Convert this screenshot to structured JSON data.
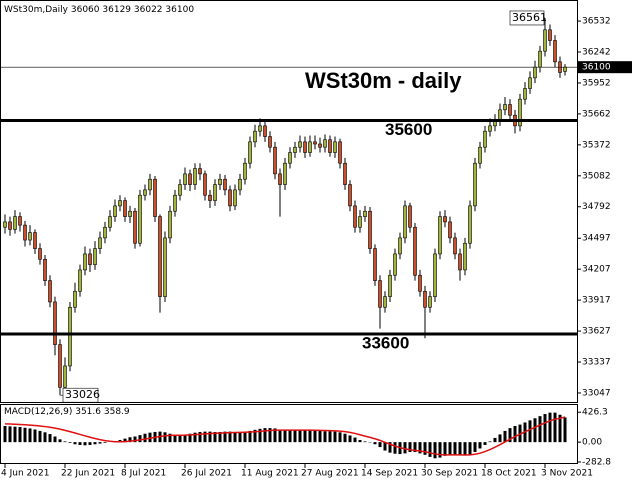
{
  "chart_data": {
    "type": "candlestick",
    "symbol": "WSt30m,Daily",
    "title": "WSt30m - daily",
    "categories": [
      "4 Jun 2021",
      null,
      null,
      null,
      null,
      null,
      null,
      null,
      null,
      null,
      null,
      null,
      "22 Jun 2021",
      null,
      null,
      null,
      null,
      null,
      null,
      null,
      null,
      null,
      null,
      null,
      "8 Jul 2021",
      null,
      null,
      null,
      null,
      null,
      null,
      null,
      null,
      null,
      null,
      null,
      "26 Jul 2021",
      null,
      null,
      null,
      null,
      null,
      null,
      null,
      null,
      null,
      null,
      null,
      "11 Aug 2021",
      null,
      null,
      null,
      null,
      null,
      null,
      null,
      null,
      null,
      null,
      null,
      "27 Aug 2021",
      null,
      null,
      null,
      null,
      null,
      null,
      null,
      null,
      null,
      null,
      null,
      "14 Sep 2021",
      null,
      null,
      null,
      null,
      null,
      null,
      null,
      null,
      null,
      null,
      null,
      "30 Sep 2021",
      null,
      null,
      null,
      null,
      null,
      null,
      null,
      null,
      null,
      null,
      null,
      "18 Oct 2021",
      null,
      null,
      null,
      null,
      null,
      null,
      null,
      null,
      null,
      null,
      null,
      "3 Nov 2021",
      null,
      null,
      null,
      null
    ],
    "open": [
      34600,
      34650,
      34580,
      34700,
      34620,
      34480,
      34550,
      34400,
      34300,
      34100,
      33900,
      33500,
      33100,
      33300,
      33850,
      34000,
      34200,
      34350,
      34250,
      34400,
      34500,
      34600,
      34700,
      34800,
      34850,
      34700,
      34750,
      34450,
      34900,
      34950,
      35050,
      34700,
      33950,
      34500,
      34750,
      34900,
      35000,
      35100,
      35000,
      35150,
      35100,
      34900,
      34850,
      35000,
      35050,
      34950,
      34800,
      34950,
      35050,
      35200,
      35400,
      35500,
      35550,
      35450,
      35350,
      35100,
      35000,
      35200,
      35300,
      35350,
      35400,
      35300,
      35400,
      35380,
      35350,
      35420,
      35300,
      35400,
      35200,
      35000,
      34800,
      34600,
      34700,
      34750,
      34400,
      34100,
      33850,
      33950,
      34150,
      34350,
      34500,
      34800,
      34600,
      34150,
      34000,
      33850,
      33950,
      34350,
      34700,
      34650,
      34500,
      34350,
      34200,
      34450,
      34800,
      35200,
      35350,
      35500,
      35550,
      35600,
      35700,
      35750,
      35650,
      35550,
      35800,
      35900,
      36000,
      36100,
      36250,
      36450,
      36350,
      36150,
      36060
    ],
    "high": [
      34720,
      34700,
      34760,
      34740,
      34660,
      34620,
      34580,
      34450,
      34340,
      34150,
      33950,
      33550,
      33380,
      33900,
      34080,
      34250,
      34420,
      34400,
      34470,
      34560,
      34650,
      34760,
      34860,
      34900,
      34880,
      34800,
      34780,
      34950,
      35000,
      35100,
      35080,
      34720,
      34560,
      34800,
      34950,
      35050,
      35160,
      35140,
      35200,
      35200,
      35130,
      34950,
      35050,
      35100,
      35090,
      34990,
      35000,
      35100,
      35250,
      35450,
      35560,
      35620,
      35600,
      35500,
      35400,
      35150,
      35250,
      35350,
      35400,
      35460,
      35450,
      35460,
      35460,
      35440,
      35470,
      35460,
      35450,
      35430,
      35250,
      35040,
      34850,
      34760,
      34800,
      34790,
      34440,
      34150,
      34000,
      34200,
      34400,
      34550,
      34850,
      34830,
      34640,
      34200,
      34050,
      34000,
      34400,
      34750,
      34760,
      34700,
      34550,
      34400,
      34500,
      34850,
      35250,
      35400,
      35550,
      35620,
      35660,
      35760,
      35820,
      35800,
      35700,
      35850,
      35960,
      36060,
      36160,
      36300,
      36561,
      36500,
      36400,
      36200,
      36129
    ],
    "low": [
      34540,
      34520,
      34540,
      34560,
      34420,
      34430,
      34350,
      34250,
      34050,
      33850,
      33400,
      33026,
      33080,
      33250,
      33800,
      33950,
      34150,
      34180,
      34200,
      34350,
      34450,
      34560,
      34650,
      34750,
      34650,
      34640,
      34400,
      34420,
      34850,
      34900,
      34650,
      33800,
      33900,
      34450,
      34700,
      34850,
      34950,
      34940,
      34950,
      35040,
      34850,
      34780,
      34800,
      34950,
      34900,
      34750,
      34760,
      34900,
      35000,
      35150,
      35350,
      35450,
      35400,
      35300,
      35050,
      34700,
      34950,
      35150,
      35250,
      35300,
      35250,
      35260,
      35330,
      35300,
      35300,
      35260,
      35250,
      35150,
      34950,
      34750,
      34550,
      34550,
      34650,
      34350,
      34050,
      33650,
      33800,
      33900,
      34100,
      34300,
      34450,
      34550,
      34100,
      33950,
      33560,
      33800,
      33900,
      34300,
      34600,
      34450,
      34300,
      34100,
      34150,
      34400,
      34750,
      35150,
      35300,
      35450,
      35500,
      35550,
      35650,
      35600,
      35480,
      35500,
      35750,
      35850,
      35950,
      36050,
      36200,
      36300,
      36100,
      36000,
      36022
    ],
    "close": [
      34650,
      34580,
      34700,
      34620,
      34480,
      34550,
      34400,
      34300,
      34100,
      33900,
      33500,
      33100,
      33300,
      33850,
      34000,
      34200,
      34350,
      34250,
      34400,
      34500,
      34600,
      34700,
      34800,
      34850,
      34700,
      34750,
      34450,
      34900,
      34950,
      35050,
      34700,
      33950,
      34500,
      34750,
      34900,
      35000,
      35100,
      35000,
      35150,
      35100,
      34900,
      34850,
      35000,
      35050,
      34950,
      34800,
      34950,
      35050,
      35200,
      35400,
      35500,
      35550,
      35450,
      35350,
      35100,
      35000,
      35200,
      35300,
      35350,
      35400,
      35300,
      35400,
      35380,
      35350,
      35420,
      35300,
      35400,
      35200,
      35000,
      34800,
      34600,
      34700,
      34750,
      34400,
      34100,
      33850,
      33950,
      34150,
      34350,
      34500,
      34800,
      34600,
      34150,
      34000,
      33850,
      33950,
      34350,
      34700,
      34650,
      34500,
      34350,
      34200,
      34450,
      34800,
      35200,
      35350,
      35500,
      35550,
      35600,
      35700,
      35750,
      35650,
      35550,
      35800,
      35900,
      36000,
      36100,
      36250,
      36450,
      36350,
      36150,
      36050,
      36100
    ],
    "up_color": "#a3b33c",
    "down_color": "#c8502a",
    "ylim": [
      32953,
      36720
    ],
    "yticks": [
      36532,
      36242,
      35952,
      35662,
      35372,
      35082,
      34792,
      34497,
      34207,
      33917,
      33627,
      33337,
      33047
    ],
    "levels": [
      35600,
      33600
    ],
    "macd": {
      "label": "MACD(12,26,9)",
      "color": "#000000",
      "signal_color": "#e01010",
      "histogram": [
        230,
        225,
        220,
        215,
        205,
        195,
        180,
        160,
        140,
        115,
        80,
        40,
        10,
        -10,
        -30,
        -40,
        -45,
        -40,
        -30,
        -20,
        -10,
        0,
        15,
        30,
        50,
        70,
        80,
        100,
        120,
        135,
        145,
        150,
        140,
        120,
        90,
        95,
        105,
        120,
        135,
        145,
        150,
        150,
        145,
        145,
        150,
        150,
        145,
        145,
        150,
        160,
        175,
        190,
        200,
        200,
        195,
        180,
        170,
        170,
        170,
        170,
        170,
        165,
        165,
        160,
        155,
        155,
        150,
        140,
        120,
        95,
        65,
        30,
        10,
        -5,
        -30,
        -70,
        -120,
        -150,
        -165,
        -170,
        -160,
        -140,
        -140,
        -160,
        -180,
        -210,
        -230,
        -220,
        -195,
        -180,
        -175,
        -180,
        -190,
        -175,
        -140,
        -90,
        -40,
        10,
        60,
        110,
        160,
        200,
        230,
        250,
        280,
        310,
        340,
        370,
        400,
        420,
        420,
        390,
        351.6
      ],
      "signal": [
        260,
        258,
        255,
        252,
        248,
        243,
        237,
        230,
        222,
        212,
        200,
        185,
        168,
        150,
        130,
        110,
        90,
        70,
        52,
        36,
        22,
        12,
        6,
        5,
        8,
        14,
        22,
        32,
        44,
        56,
        68,
        80,
        90,
        96,
        98,
        99,
        100,
        103,
        107,
        112,
        117,
        122,
        126,
        129,
        132,
        135,
        137,
        139,
        141,
        144,
        148,
        154,
        160,
        166,
        170,
        172,
        172,
        172,
        172,
        172,
        172,
        171,
        170,
        168,
        166,
        164,
        161,
        157,
        150,
        139,
        124,
        105,
        86,
        68,
        48,
        25,
        -2,
        -30,
        -56,
        -79,
        -96,
        -108,
        -117,
        -126,
        -137,
        -152,
        -168,
        -178,
        -182,
        -182,
        -181,
        -181,
        -183,
        -181,
        -173,
        -157,
        -134,
        -105,
        -72,
        -36,
        3,
        42,
        80,
        114,
        147,
        180,
        212,
        244,
        275,
        304,
        327,
        339,
        358.9
      ],
      "ylim": [
        -297,
        529
      ],
      "yticks": [
        426.3,
        {
          "value": 0,
          "label": "0.00"
        },
        -282.8
      ]
    }
  }
}
